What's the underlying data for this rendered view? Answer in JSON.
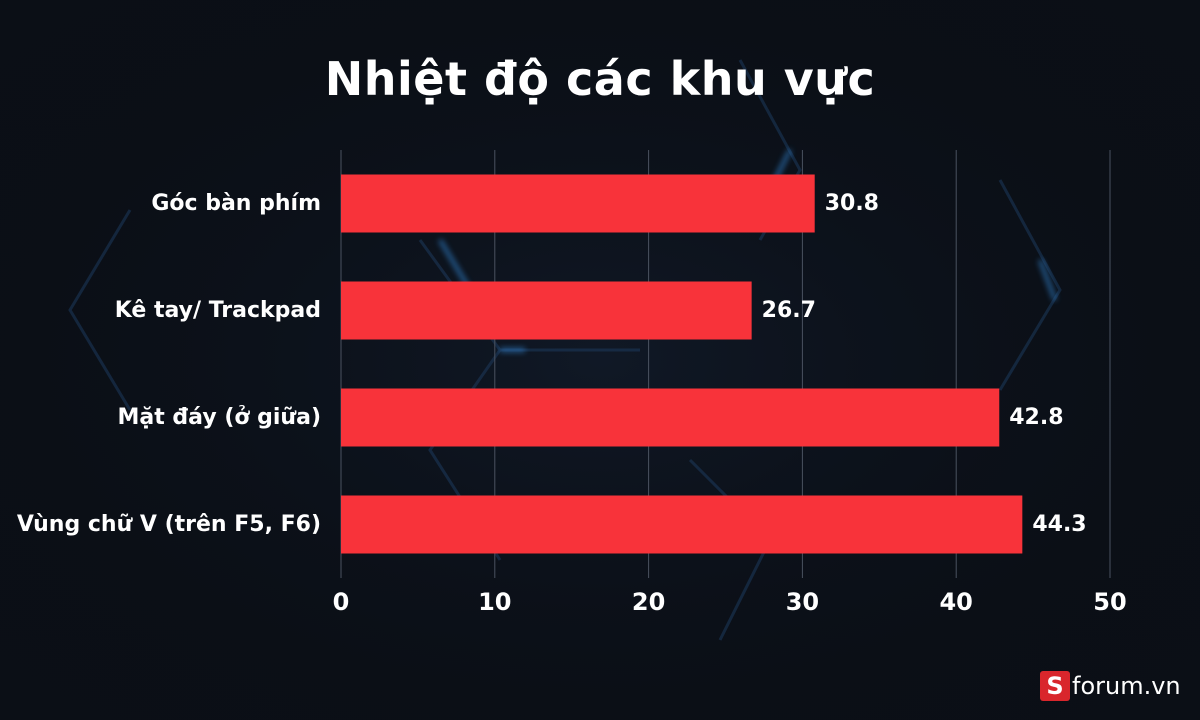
{
  "chart_data": {
    "type": "bar",
    "orientation": "horizontal",
    "title": "Nhiệt độ các khu vực",
    "categories": [
      "Góc bàn phím",
      "Kê tay/ Trackpad",
      "Mặt đáy (ở giữa)",
      "Vùng chữ V (trên F5, F6)"
    ],
    "values": [
      30.8,
      26.7,
      42.8,
      44.3
    ],
    "value_labels": [
      "30.8",
      "26.7",
      "42.8",
      "44.3"
    ],
    "xlim": [
      0,
      50
    ],
    "xticks": [
      0,
      10,
      20,
      30,
      40,
      50
    ],
    "xtick_labels": [
      "0",
      "10",
      "20",
      "30",
      "40",
      "50"
    ],
    "grid": true,
    "bar_color": "#f8333a"
  },
  "watermark": {
    "mark": "S",
    "text": "forum.vn"
  },
  "colors": {
    "background": "#0b0f16",
    "accent": "#2a8be0",
    "text": "#ffffff",
    "brand_red": "#d9262c"
  }
}
